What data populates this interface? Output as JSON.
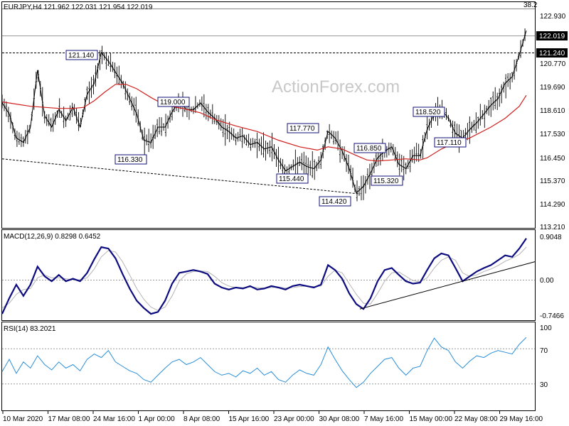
{
  "chart_data": [
    {
      "type": "candlestick",
      "header": "EURJPY,H4  121.962 122.031 121.954 122.019",
      "watermark": "ActionForex.com",
      "corner_label": "38.2",
      "y_ticks": [
        "122.930",
        "121.850",
        "120.770",
        "119.690",
        "118.610",
        "117.530",
        "116.450",
        "115.370",
        "114.290",
        "113.210"
      ],
      "ylim": [
        113.0,
        123.3
      ],
      "x_ticks": [
        "10 Mar 2020",
        "17 Mar 08:00",
        "24 Mar 16:00",
        "1 Apr 00:00",
        "8 Apr 08:00",
        "15 Apr 16:00",
        "23 Apr 00:00",
        "30 Apr 08:00",
        "7 May 16:00",
        "15 May 00:00",
        "22 May 08:00",
        "29 May 16:00"
      ],
      "last_price": "122.019",
      "level_price": "121.240",
      "price_labels": [
        "121.140",
        "119.000",
        "116.330",
        "117.770",
        "115.440",
        "116.850",
        "114.420",
        "115.320",
        "118.520",
        "117.110"
      ],
      "close_path": [
        [
          0,
          118.7
        ],
        [
          10,
          118.2
        ],
        [
          20,
          117.1
        ],
        [
          30,
          116.9
        ],
        [
          40,
          117.6
        ],
        [
          50,
          120.2
        ],
        [
          60,
          118.1
        ],
        [
          70,
          117.6
        ],
        [
          80,
          118.4
        ],
        [
          90,
          117.9
        ],
        [
          100,
          118.5
        ],
        [
          110,
          117.6
        ],
        [
          120,
          119.1
        ],
        [
          130,
          119.6
        ],
        [
          140,
          121.0
        ],
        [
          150,
          120.6
        ],
        [
          160,
          120.1
        ],
        [
          170,
          119.6
        ],
        [
          180,
          118.9
        ],
        [
          190,
          118.2
        ],
        [
          200,
          117.0
        ],
        [
          210,
          116.9
        ],
        [
          220,
          117.6
        ],
        [
          230,
          117.6
        ],
        [
          240,
          118.3
        ],
        [
          250,
          118.8
        ],
        [
          260,
          118.4
        ],
        [
          270,
          118.4
        ],
        [
          280,
          118.7
        ],
        [
          290,
          118.3
        ],
        [
          300,
          118.0
        ],
        [
          310,
          117.6
        ],
        [
          320,
          117.4
        ],
        [
          330,
          117.1
        ],
        [
          340,
          117.2
        ],
        [
          350,
          116.8
        ],
        [
          360,
          116.9
        ],
        [
          370,
          116.6
        ],
        [
          380,
          116.7
        ],
        [
          390,
          116.1
        ],
        [
          400,
          115.6
        ],
        [
          410,
          115.8
        ],
        [
          420,
          116.0
        ],
        [
          430,
          115.8
        ],
        [
          440,
          115.7
        ],
        [
          450,
          116.1
        ],
        [
          460,
          117.4
        ],
        [
          470,
          117.1
        ],
        [
          480,
          116.5
        ],
        [
          490,
          115.7
        ],
        [
          500,
          114.6
        ],
        [
          510,
          114.9
        ],
        [
          520,
          115.5
        ],
        [
          530,
          116.2
        ],
        [
          540,
          116.5
        ],
        [
          550,
          116.7
        ],
        [
          560,
          115.9
        ],
        [
          570,
          115.7
        ],
        [
          580,
          116.3
        ],
        [
          590,
          116.3
        ],
        [
          600,
          117.5
        ],
        [
          610,
          118.2
        ],
        [
          620,
          118.4
        ],
        [
          630,
          118.0
        ],
        [
          640,
          117.3
        ],
        [
          650,
          117.1
        ],
        [
          660,
          117.5
        ],
        [
          670,
          117.8
        ],
        [
          680,
          118.2
        ],
        [
          690,
          118.6
        ],
        [
          700,
          118.9
        ],
        [
          710,
          119.6
        ],
        [
          720,
          119.9
        ],
        [
          730,
          120.9
        ],
        [
          740,
          122.0
        ]
      ],
      "ma_path": [
        [
          0,
          118.75
        ],
        [
          20,
          118.65
        ],
        [
          40,
          118.55
        ],
        [
          60,
          118.5
        ],
        [
          80,
          118.45
        ],
        [
          100,
          118.45
        ],
        [
          115,
          118.5
        ],
        [
          130,
          118.8
        ],
        [
          145,
          119.2
        ],
        [
          160,
          119.55
        ],
        [
          175,
          119.55
        ],
        [
          190,
          119.35
        ],
        [
          210,
          118.95
        ],
        [
          230,
          118.6
        ],
        [
          255,
          118.45
        ],
        [
          280,
          118.25
        ],
        [
          300,
          117.95
        ],
        [
          330,
          117.65
        ],
        [
          360,
          117.4
        ],
        [
          390,
          117.0
        ],
        [
          420,
          116.7
        ],
        [
          445,
          116.55
        ],
        [
          460,
          116.7
        ],
        [
          480,
          116.6
        ],
        [
          500,
          116.3
        ],
        [
          515,
          116.1
        ],
        [
          530,
          116.05
        ],
        [
          550,
          116.1
        ],
        [
          570,
          116.15
        ],
        [
          590,
          116.1
        ],
        [
          600,
          116.2
        ],
        [
          620,
          116.6
        ],
        [
          640,
          116.9
        ],
        [
          660,
          117.1
        ],
        [
          690,
          117.6
        ],
        [
          710,
          118.0
        ],
        [
          730,
          118.55
        ],
        [
          740,
          119.05
        ]
      ],
      "dashed_trend": {
        "from": [
          0,
          116.15
        ],
        "to": [
          505,
          114.55
        ]
      }
    },
    {
      "type": "line",
      "header": "MACD(12,26,9) 0.8298 0.6452",
      "y_ticks": [
        "0.9048",
        "0.00",
        "-0.7466"
      ],
      "ylim": [
        -0.85,
        1.0
      ],
      "macd_path": [
        [
          0,
          -0.72
        ],
        [
          10,
          -0.4
        ],
        [
          20,
          -0.12
        ],
        [
          30,
          -0.35
        ],
        [
          40,
          -0.12
        ],
        [
          50,
          0.25
        ],
        [
          60,
          0.05
        ],
        [
          70,
          -0.05
        ],
        [
          80,
          0.08
        ],
        [
          90,
          -0.05
        ],
        [
          100,
          0.0
        ],
        [
          110,
          -0.05
        ],
        [
          120,
          0.12
        ],
        [
          130,
          0.4
        ],
        [
          140,
          0.65
        ],
        [
          150,
          0.62
        ],
        [
          160,
          0.42
        ],
        [
          170,
          0.1
        ],
        [
          180,
          -0.2
        ],
        [
          190,
          -0.45
        ],
        [
          200,
          -0.6
        ],
        [
          210,
          -0.72
        ],
        [
          220,
          -0.68
        ],
        [
          230,
          -0.45
        ],
        [
          240,
          -0.1
        ],
        [
          250,
          0.12
        ],
        [
          260,
          0.15
        ],
        [
          270,
          0.18
        ],
        [
          280,
          0.15
        ],
        [
          290,
          0.1
        ],
        [
          300,
          -0.1
        ],
        [
          310,
          -0.18
        ],
        [
          320,
          -0.22
        ],
        [
          330,
          -0.18
        ],
        [
          340,
          -0.2
        ],
        [
          350,
          -0.15
        ],
        [
          360,
          -0.22
        ],
        [
          370,
          -0.2
        ],
        [
          380,
          -0.15
        ],
        [
          390,
          -0.18
        ],
        [
          400,
          -0.22
        ],
        [
          410,
          -0.15
        ],
        [
          420,
          -0.12
        ],
        [
          430,
          -0.15
        ],
        [
          440,
          -0.18
        ],
        [
          450,
          -0.12
        ],
        [
          460,
          0.28
        ],
        [
          470,
          0.18
        ],
        [
          480,
          0.0
        ],
        [
          490,
          -0.3
        ],
        [
          500,
          -0.52
        ],
        [
          510,
          -0.62
        ],
        [
          520,
          -0.4
        ],
        [
          530,
          -0.05
        ],
        [
          540,
          0.18
        ],
        [
          550,
          0.22
        ],
        [
          560,
          0.08
        ],
        [
          570,
          -0.05
        ],
        [
          580,
          -0.1
        ],
        [
          590,
          -0.08
        ],
        [
          600,
          0.18
        ],
        [
          610,
          0.42
        ],
        [
          620,
          0.52
        ],
        [
          630,
          0.48
        ],
        [
          640,
          0.22
        ],
        [
          650,
          -0.05
        ],
        [
          660,
          0.05
        ],
        [
          670,
          0.15
        ],
        [
          680,
          0.22
        ],
        [
          690,
          0.28
        ],
        [
          700,
          0.38
        ],
        [
          710,
          0.48
        ],
        [
          720,
          0.45
        ],
        [
          730,
          0.62
        ],
        [
          740,
          0.83
        ]
      ],
      "signal_path": [
        [
          0,
          -0.6
        ],
        [
          10,
          -0.5
        ],
        [
          20,
          -0.32
        ],
        [
          30,
          -0.22
        ],
        [
          40,
          -0.2
        ],
        [
          50,
          0.02
        ],
        [
          60,
          0.08
        ],
        [
          70,
          0.02
        ],
        [
          80,
          0.02
        ],
        [
          90,
          0.0
        ],
        [
          100,
          -0.02
        ],
        [
          110,
          -0.02
        ],
        [
          120,
          0.02
        ],
        [
          130,
          0.2
        ],
        [
          140,
          0.45
        ],
        [
          150,
          0.58
        ],
        [
          160,
          0.55
        ],
        [
          170,
          0.35
        ],
        [
          180,
          0.08
        ],
        [
          190,
          -0.2
        ],
        [
          200,
          -0.42
        ],
        [
          210,
          -0.58
        ],
        [
          220,
          -0.65
        ],
        [
          230,
          -0.58
        ],
        [
          240,
          -0.35
        ],
        [
          250,
          -0.05
        ],
        [
          260,
          0.1
        ],
        [
          270,
          0.15
        ],
        [
          280,
          0.16
        ],
        [
          290,
          0.15
        ],
        [
          300,
          0.05
        ],
        [
          310,
          -0.08
        ],
        [
          320,
          -0.15
        ],
        [
          330,
          -0.18
        ],
        [
          340,
          -0.18
        ],
        [
          350,
          -0.17
        ],
        [
          360,
          -0.18
        ],
        [
          370,
          -0.19
        ],
        [
          380,
          -0.18
        ],
        [
          390,
          -0.17
        ],
        [
          400,
          -0.19
        ],
        [
          410,
          -0.18
        ],
        [
          420,
          -0.16
        ],
        [
          430,
          -0.15
        ],
        [
          440,
          -0.16
        ],
        [
          450,
          -0.15
        ],
        [
          460,
          0.05
        ],
        [
          470,
          0.18
        ],
        [
          480,
          0.12
        ],
        [
          490,
          -0.1
        ],
        [
          500,
          -0.32
        ],
        [
          510,
          -0.5
        ],
        [
          520,
          -0.52
        ],
        [
          530,
          -0.3
        ],
        [
          540,
          -0.05
        ],
        [
          550,
          0.12
        ],
        [
          560,
          0.14
        ],
        [
          570,
          0.05
        ],
        [
          580,
          -0.04
        ],
        [
          590,
          -0.06
        ],
        [
          600,
          0.02
        ],
        [
          610,
          0.22
        ],
        [
          620,
          0.38
        ],
        [
          630,
          0.45
        ],
        [
          640,
          0.38
        ],
        [
          650,
          0.12
        ],
        [
          660,
          0.05
        ],
        [
          670,
          0.08
        ],
        [
          680,
          0.15
        ],
        [
          690,
          0.2
        ],
        [
          700,
          0.27
        ],
        [
          710,
          0.36
        ],
        [
          720,
          0.42
        ],
        [
          730,
          0.5
        ],
        [
          740,
          0.65
        ]
      ],
      "trend_line": {
        "from": [
          505,
          -0.62
        ],
        "to": [
          752,
          0.35
        ]
      }
    },
    {
      "type": "line",
      "header": "RSI(14) 83.2021",
      "y_ticks": [
        "100",
        "70",
        "30"
      ],
      "ylim": [
        0,
        100
      ],
      "levels": [
        70,
        30
      ],
      "rsi_path": [
        [
          0,
          44
        ],
        [
          10,
          58
        ],
        [
          20,
          42
        ],
        [
          30,
          55
        ],
        [
          40,
          48
        ],
        [
          50,
          62
        ],
        [
          60,
          52
        ],
        [
          70,
          46
        ],
        [
          80,
          55
        ],
        [
          90,
          48
        ],
        [
          100,
          52
        ],
        [
          110,
          45
        ],
        [
          120,
          58
        ],
        [
          130,
          64
        ],
        [
          140,
          60
        ],
        [
          150,
          68
        ],
        [
          160,
          55
        ],
        [
          170,
          50
        ],
        [
          180,
          45
        ],
        [
          190,
          42
        ],
        [
          200,
          35
        ],
        [
          210,
          32
        ],
        [
          220,
          40
        ],
        [
          230,
          48
        ],
        [
          240,
          55
        ],
        [
          250,
          58
        ],
        [
          260,
          52
        ],
        [
          270,
          55
        ],
        [
          280,
          60
        ],
        [
          290,
          52
        ],
        [
          300,
          44
        ],
        [
          310,
          40
        ],
        [
          320,
          42
        ],
        [
          330,
          38
        ],
        [
          340,
          45
        ],
        [
          350,
          42
        ],
        [
          360,
          48
        ],
        [
          370,
          40
        ],
        [
          380,
          44
        ],
        [
          390,
          35
        ],
        [
          400,
          32
        ],
        [
          410,
          40
        ],
        [
          420,
          46
        ],
        [
          430,
          42
        ],
        [
          440,
          40
        ],
        [
          450,
          52
        ],
        [
          460,
          72
        ],
        [
          470,
          58
        ],
        [
          480,
          45
        ],
        [
          490,
          35
        ],
        [
          500,
          26
        ],
        [
          510,
          32
        ],
        [
          520,
          42
        ],
        [
          530,
          50
        ],
        [
          540,
          58
        ],
        [
          550,
          60
        ],
        [
          560,
          48
        ],
        [
          570,
          40
        ],
        [
          580,
          48
        ],
        [
          590,
          50
        ],
        [
          600,
          68
        ],
        [
          610,
          82
        ],
        [
          620,
          72
        ],
        [
          630,
          68
        ],
        [
          640,
          55
        ],
        [
          650,
          48
        ],
        [
          660,
          56
        ],
        [
          670,
          62
        ],
        [
          680,
          60
        ],
        [
          690,
          65
        ],
        [
          700,
          68
        ],
        [
          710,
          66
        ],
        [
          720,
          64
        ],
        [
          730,
          75
        ],
        [
          740,
          83
        ]
      ]
    }
  ],
  "colors": {
    "price": "#000000",
    "ma": "#d0201e",
    "macd": "#0c0c80",
    "signal": "#b4b4b4",
    "label_border": "#12127a",
    "grid": "#9a9a9a",
    "last_box": "#000000"
  }
}
